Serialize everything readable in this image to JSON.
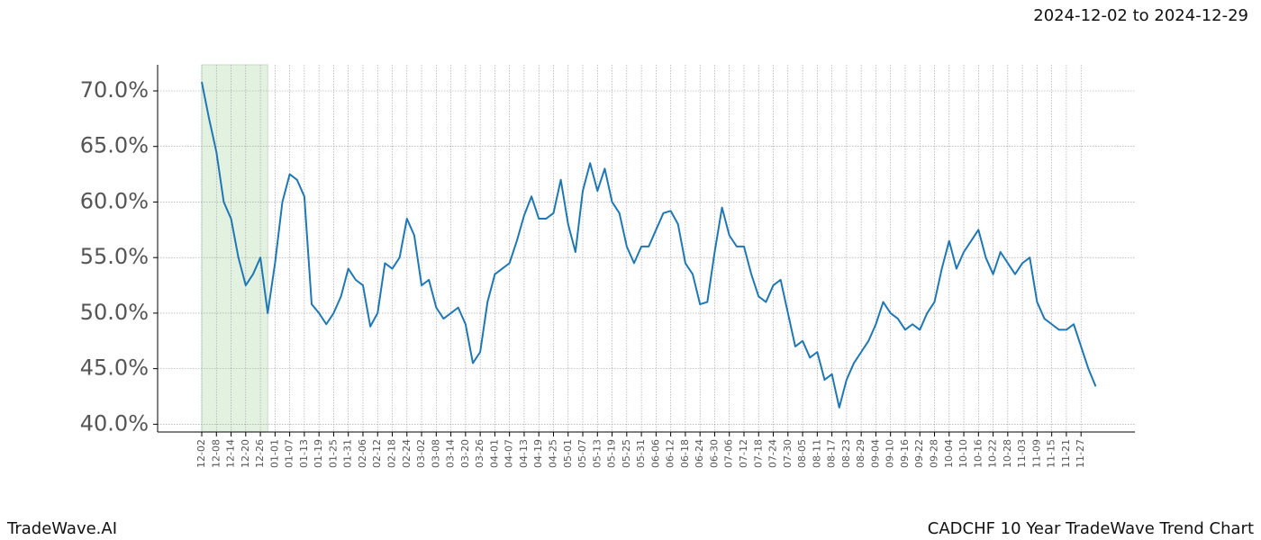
{
  "chart_data": {
    "type": "line",
    "subtitle": "2024-12-02 to 2024-12-29",
    "brand": "TradeWave.AI",
    "title": "CADCHF 10 Year TradeWave Trend Chart",
    "color": "#1f77b4",
    "grid": true,
    "xticks": [
      "12-02",
      "12-08",
      "12-14",
      "12-20",
      "12-26",
      "01-01",
      "01-07",
      "01-13",
      "01-19",
      "01-25",
      "01-31",
      "02-06",
      "02-12",
      "02-18",
      "02-24",
      "03-02",
      "03-08",
      "03-14",
      "03-20",
      "03-26",
      "04-01",
      "04-07",
      "04-13",
      "04-19",
      "04-25",
      "05-01",
      "05-07",
      "05-13",
      "05-19",
      "05-25",
      "05-31",
      "06-06",
      "06-12",
      "06-18",
      "06-24",
      "06-30",
      "07-06",
      "07-12",
      "07-18",
      "07-24",
      "07-30",
      "08-05",
      "08-11",
      "08-17",
      "08-23",
      "08-29",
      "09-04",
      "09-10",
      "09-16",
      "09-22",
      "09-28",
      "10-04",
      "10-10",
      "10-16",
      "10-22",
      "10-28",
      "11-03",
      "11-09",
      "11-15",
      "11-21",
      "11-27"
    ],
    "values": [
      70.8,
      67.5,
      64.5,
      60,
      58.5,
      55,
      52.5,
      53.5,
      55,
      50,
      54.5,
      60,
      62.5,
      62,
      60.5,
      50.8,
      50,
      49,
      50,
      51.5,
      54,
      53,
      52.5,
      48.8,
      50,
      54.5,
      54,
      55,
      58.5,
      57,
      52.5,
      53,
      50.5,
      49.5,
      50,
      50.5,
      49,
      45.5,
      46.5,
      51,
      53.5,
      54,
      54.5,
      56.5,
      58.8,
      60.5,
      58.5,
      58.5,
      59,
      62,
      58,
      55.5,
      61,
      63.5,
      61,
      63,
      60,
      59,
      56,
      54.5,
      56,
      56,
      57.5,
      59,
      59.2,
      58,
      54.5,
      53.5,
      50.8,
      51,
      55.5,
      59.5,
      57,
      56,
      56,
      53.5,
      51.5,
      51,
      52.5,
      53,
      50,
      47,
      47.5,
      46,
      46.5,
      44,
      44.5,
      41.5,
      44,
      45.5,
      46.5,
      47.5,
      49,
      51,
      50,
      49.5,
      48.5,
      49,
      48.5,
      50,
      51,
      54,
      56.5,
      54,
      55.5,
      56.5,
      57.5,
      55,
      53.5,
      55.5,
      54.5,
      53.5,
      54.5,
      55,
      51,
      49.5,
      49,
      48.5,
      48.5,
      49,
      47,
      45,
      43.4
    ],
    "ylim": [
      39.3,
      72.35
    ],
    "yticks": [
      {
        "value": 40,
        "label": "40.0%"
      },
      {
        "value": 45,
        "label": "45.0%"
      },
      {
        "value": 50,
        "label": "50.0%"
      },
      {
        "value": 55,
        "label": "55.0%"
      },
      {
        "value": 60,
        "label": "60.0%"
      },
      {
        "value": 65,
        "label": "65.0%"
      },
      {
        "value": 70,
        "label": "70.0%"
      }
    ]
  }
}
